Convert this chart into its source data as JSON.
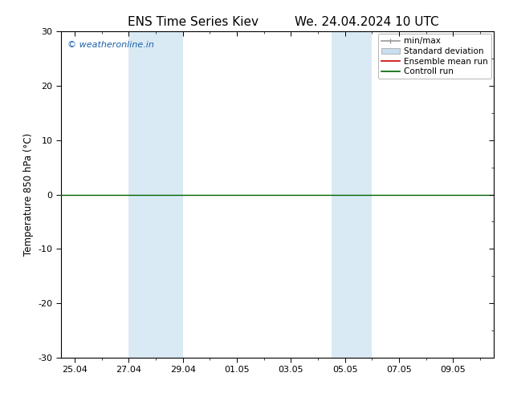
{
  "title_left": "ENS Time Series Kiev",
  "title_right": "We. 24.04.2024 10 UTC",
  "ylabel": "Temperature 850 hPa (°C)",
  "ylim": [
    -30,
    30
  ],
  "yticks": [
    -30,
    -20,
    -10,
    0,
    10,
    20,
    30
  ],
  "xtick_labels": [
    "25.04",
    "27.04",
    "29.04",
    "01.05",
    "03.05",
    "05.05",
    "07.05",
    "09.05"
  ],
  "xtick_positions": [
    0,
    2,
    4,
    6,
    8,
    10,
    12,
    14
  ],
  "x_num_ticks": 16,
  "shaded_regions": [
    {
      "x_start": 2,
      "x_end": 4,
      "color": "#daeaf5"
    },
    {
      "x_start": 9.5,
      "x_end": 11,
      "color": "#daeaf5"
    }
  ],
  "control_run_color": "#006400",
  "ensemble_mean_color": "#cc0000",
  "minmax_color": "#999999",
  "stddev_color": "#c8dff0",
  "watermark_text": "© weatheronline.in",
  "watermark_color": "#1a5faa",
  "background_color": "#ffffff",
  "plot_bg_color": "#ffffff",
  "title_fontsize": 11,
  "label_fontsize": 8.5,
  "tick_fontsize": 8,
  "legend_fontsize": 7.5
}
